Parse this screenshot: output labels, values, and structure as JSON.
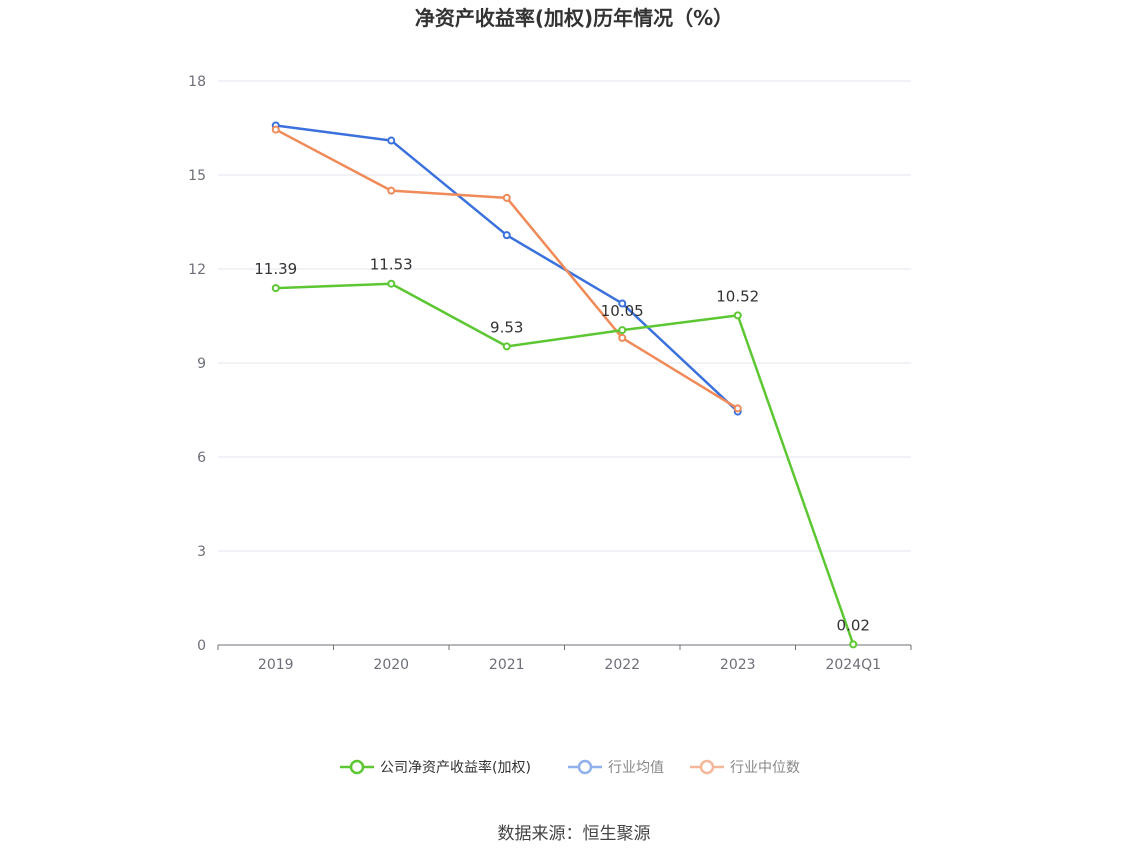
{
  "chart_data": {
    "type": "line",
    "title": "净资产收益率(加权)历年情况（%）",
    "categories": [
      "2019",
      "2020",
      "2021",
      "2022",
      "2023",
      "2024Q1"
    ],
    "ylim": [
      0,
      18
    ],
    "yticks": [
      "0",
      "3",
      "6",
      "9",
      "12",
      "15",
      "18"
    ],
    "grid": true,
    "legend_position": "bottom",
    "series": [
      {
        "name": "公司净资产收益率(加权)",
        "color": "#5dc733",
        "values": [
          11.39,
          11.53,
          9.53,
          10.05,
          10.52,
          0.02
        ],
        "labels": [
          "11.39",
          "11.53",
          "9.53",
          "10.05",
          "10.52",
          "0.02"
        ]
      },
      {
        "name": "行业均值",
        "color": "#3a71dd",
        "legend_color": "#8fb0ea",
        "values": [
          16.58,
          16.1,
          13.08,
          10.9,
          7.45,
          null
        ]
      },
      {
        "name": "行业中位数",
        "color": "#f08a58",
        "legend_color": "#f5b79a",
        "values": [
          16.45,
          14.5,
          14.27,
          9.8,
          7.55,
          null
        ]
      }
    ],
    "source": "数据来源：恒生聚源"
  }
}
